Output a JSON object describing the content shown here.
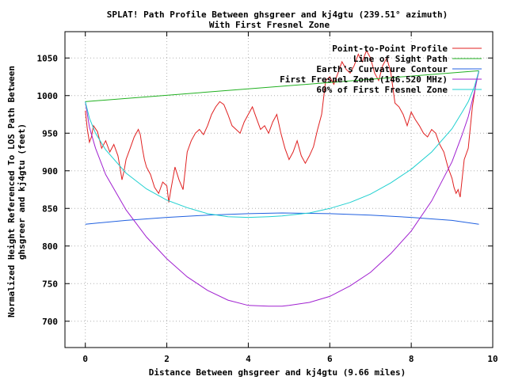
{
  "chart_data": {
    "type": "line",
    "title": "SPLAT! Path Profile Between ghsgreer and kj4gtu (239.51° azimuth)",
    "subtitle": "With First Fresnel Zone",
    "xlabel": "Distance Between ghsgreer and kj4gtu (9.66 miles)",
    "ylabel_line1": "Normalized Height Referenced To LOS Path Between",
    "ylabel_line2": "ghsgreer and kj4gtu (feet)",
    "xlim": [
      -0.5,
      10
    ],
    "ylim": [
      665,
      1085
    ],
    "xticks": [
      0,
      2,
      4,
      6,
      8,
      10
    ],
    "yticks": [
      700,
      750,
      800,
      850,
      900,
      950,
      1000,
      1050
    ],
    "grid": true,
    "legend_position": "top-right",
    "series": [
      {
        "name": "Point-to-Point Profile",
        "color": "#e02020",
        "x": [
          0.0,
          0.05,
          0.1,
          0.15,
          0.2,
          0.3,
          0.4,
          0.5,
          0.6,
          0.7,
          0.8,
          0.85,
          0.9,
          0.95,
          1.0,
          1.1,
          1.2,
          1.3,
          1.35,
          1.4,
          1.45,
          1.5,
          1.6,
          1.7,
          1.8,
          1.9,
          2.0,
          2.05,
          2.1,
          2.15,
          2.2,
          2.3,
          2.4,
          2.5,
          2.6,
          2.7,
          2.8,
          2.9,
          3.0,
          3.1,
          3.2,
          3.3,
          3.4,
          3.5,
          3.6,
          3.7,
          3.8,
          3.9,
          4.0,
          4.1,
          4.2,
          4.3,
          4.4,
          4.5,
          4.6,
          4.7,
          4.8,
          4.9,
          5.0,
          5.1,
          5.2,
          5.3,
          5.4,
          5.5,
          5.6,
          5.7,
          5.8,
          5.9,
          6.0,
          6.1,
          6.2,
          6.3,
          6.4,
          6.5,
          6.6,
          6.7,
          6.8,
          6.9,
          7.0,
          7.1,
          7.2,
          7.3,
          7.4,
          7.5,
          7.6,
          7.7,
          7.8,
          7.9,
          8.0,
          8.1,
          8.2,
          8.3,
          8.4,
          8.5,
          8.6,
          8.7,
          8.8,
          8.9,
          9.0,
          9.05,
          9.1,
          9.15,
          9.2,
          9.3,
          9.4,
          9.5,
          9.6,
          9.66
        ],
        "y": [
          980,
          955,
          938,
          945,
          960,
          952,
          930,
          940,
          925,
          935,
          920,
          905,
          888,
          900,
          915,
          930,
          945,
          955,
          948,
          930,
          915,
          905,
          895,
          878,
          870,
          885,
          880,
          858,
          875,
          890,
          905,
          888,
          875,
          925,
          940,
          950,
          955,
          948,
          960,
          975,
          985,
          992,
          988,
          975,
          960,
          955,
          950,
          965,
          975,
          985,
          970,
          955,
          960,
          950,
          965,
          975,
          950,
          930,
          915,
          925,
          940,
          920,
          910,
          920,
          932,
          955,
          975,
          1020,
          1025,
          1015,
          1030,
          1045,
          1035,
          1030,
          1040,
          1055,
          1045,
          1060,
          1050,
          1030,
          1020,
          1040,
          1050,
          1030,
          990,
          985,
          975,
          960,
          978,
          968,
          960,
          950,
          945,
          955,
          950,
          935,
          925,
          905,
          890,
          878,
          870,
          875,
          865,
          915,
          930,
          985,
          1020,
          1032
        ]
      },
      {
        "name": "Line of Sight Path",
        "color": "#20b020",
        "x": [
          0,
          9.66
        ],
        "y": [
          992,
          1033
        ]
      },
      {
        "name": "Earth's Curvature Contour",
        "color": "#2060e0",
        "x": [
          0,
          1,
          2,
          3,
          4,
          4.83,
          6,
          7,
          8,
          9,
          9.66
        ],
        "y": [
          829,
          834,
          838,
          841,
          843,
          844,
          843,
          841,
          838,
          834,
          829
        ]
      },
      {
        "name": "First Fresnel Zone (146.520 MHz)",
        "color": "#a020d0",
        "x": [
          0,
          0.1,
          0.25,
          0.5,
          1,
          1.5,
          2,
          2.5,
          3,
          3.5,
          4,
          4.5,
          4.83,
          5,
          5.5,
          6,
          6.5,
          7,
          7.5,
          8,
          8.5,
          9,
          9.25,
          9.4,
          9.55,
          9.66
        ],
        "y": [
          992,
          958,
          930,
          895,
          848,
          812,
          783,
          759,
          741,
          728,
          721,
          720,
          720,
          721,
          725,
          733,
          747,
          765,
          790,
          820,
          860,
          912,
          948,
          972,
          1005,
          1033
        ]
      },
      {
        "name": "60% of First Fresnel Zone",
        "color": "#20d0d0",
        "x": [
          0,
          0.1,
          0.25,
          0.5,
          1,
          1.5,
          2,
          2.5,
          3,
          3.5,
          4,
          4.5,
          4.83,
          5,
          5.5,
          6,
          6.5,
          7,
          7.5,
          8,
          8.5,
          9,
          9.25,
          9.4,
          9.55,
          9.66
        ],
        "y": [
          992,
          970,
          950,
          928,
          897,
          876,
          861,
          851,
          843,
          839,
          838,
          839,
          840,
          841,
          844,
          850,
          858,
          869,
          884,
          902,
          925,
          956,
          978,
          992,
          1012,
          1033
        ]
      }
    ]
  }
}
